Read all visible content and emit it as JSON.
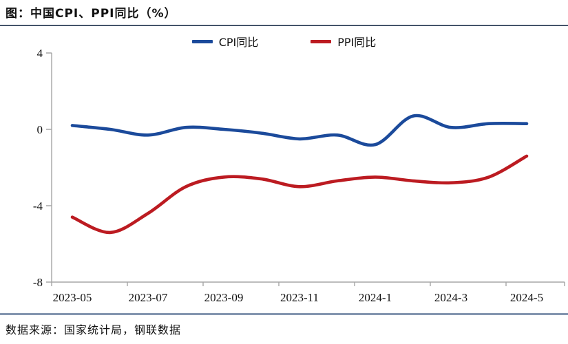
{
  "header": {
    "title": "图：中国CPI、PPI同比（%）"
  },
  "legend": {
    "items": [
      {
        "label": "CPI同比",
        "color": "#1b4a9b"
      },
      {
        "label": "PPI同比",
        "color": "#bc1b21"
      }
    ]
  },
  "footer": {
    "source": "数据来源：国家统计局，钢联数据"
  },
  "colors": {
    "cpi_line": "#1b4a9b",
    "ppi_line": "#bc1b21",
    "axis": "#a6a6a6",
    "top_rule": "#44546a",
    "bottom_rule": "#8496b0",
    "text": "#111111"
  },
  "chart_data": {
    "type": "line",
    "title": "图：中国CPI、PPI同比（%）",
    "x": [
      "2023-05",
      "2023-06",
      "2023-07",
      "2023-08",
      "2023-09",
      "2023-10",
      "2023-11",
      "2023-12",
      "2024-1",
      "2024-2",
      "2024-3",
      "2024-4",
      "2024-5"
    ],
    "x_tick_labels": [
      "2023-05",
      "2023-07",
      "2023-09",
      "2023-11",
      "2024-1",
      "2024-3",
      "2024-5"
    ],
    "y_tick_labels": [
      "4",
      "0",
      "-4",
      "-8"
    ],
    "y_ticks": [
      4,
      0,
      -4,
      -8
    ],
    "ylim": [
      -8,
      4
    ],
    "grid": false,
    "legend_position": "top",
    "series": [
      {
        "name": "CPI同比",
        "color": "#1b4a9b",
        "values": [
          0.2,
          0.0,
          -0.3,
          0.1,
          0.0,
          -0.2,
          -0.5,
          -0.3,
          -0.8,
          0.7,
          0.1,
          0.3,
          0.3
        ]
      },
      {
        "name": "PPI同比",
        "color": "#bc1b21",
        "values": [
          -4.6,
          -5.4,
          -4.4,
          -3.0,
          -2.5,
          -2.6,
          -3.0,
          -2.7,
          -2.5,
          -2.7,
          -2.8,
          -2.5,
          -1.4
        ]
      }
    ]
  }
}
